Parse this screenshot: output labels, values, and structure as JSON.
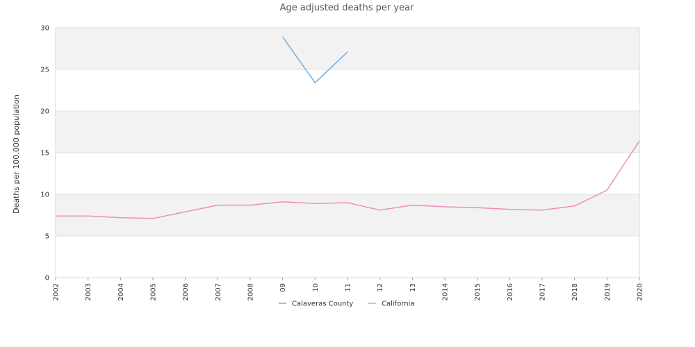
{
  "chart_data": {
    "type": "line",
    "title": "Age adjusted deaths per year",
    "xlabel": "",
    "ylabel": "Deaths per 100,000 population",
    "x_tick_labels": [
      "2002",
      "2003",
      "2004",
      "2005",
      "2006",
      "2007",
      "2008",
      "09",
      "10",
      "11",
      "12",
      "13",
      "2014",
      "2015",
      "2016",
      "2017",
      "2018",
      "2019",
      "2020"
    ],
    "y_ticks": [
      0,
      5,
      10,
      15,
      20,
      25,
      30
    ],
    "ylim": [
      0,
      30
    ],
    "grid": true,
    "legend_position": "bottom",
    "series": [
      {
        "name": "Calaveras County",
        "color": "#6ab0e8",
        "values": [
          null,
          null,
          null,
          null,
          null,
          null,
          null,
          28.9,
          23.4,
          27.1,
          null,
          null,
          null,
          null,
          null,
          null,
          null,
          null,
          null
        ]
      },
      {
        "name": "California",
        "color": "#f08cc0",
        "values": [
          7.4,
          7.4,
          7.2,
          7.1,
          7.9,
          8.7,
          8.7,
          9.1,
          8.9,
          9.0,
          8.1,
          8.7,
          8.5,
          8.4,
          8.2,
          8.1,
          8.6,
          10.5,
          16.4
        ]
      }
    ]
  }
}
